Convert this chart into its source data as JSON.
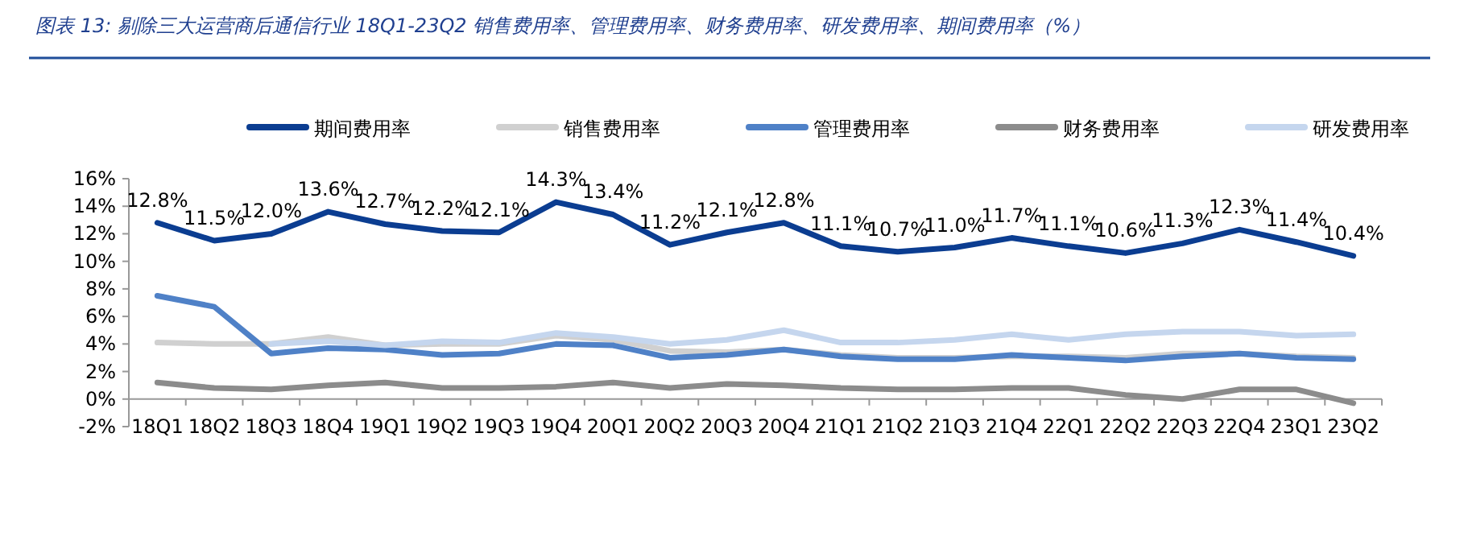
{
  "chart_data": {
    "type": "line",
    "title": "图表 13: 剔除三大运营商后通信行业 18Q1-23Q2 销售费用率、管理费用率、财务费用率、研发费用率、期间费用率（%）",
    "categories": [
      "18Q1",
      "18Q2",
      "18Q3",
      "18Q4",
      "19Q1",
      "19Q2",
      "19Q3",
      "19Q4",
      "20Q1",
      "20Q2",
      "20Q3",
      "20Q4",
      "21Q1",
      "21Q2",
      "21Q3",
      "21Q4",
      "22Q1",
      "22Q2",
      "22Q3",
      "22Q4",
      "23Q1",
      "23Q2"
    ],
    "series": [
      {
        "name": "期间费用率",
        "color": "#0b3d91",
        "values": [
          12.8,
          11.5,
          12.0,
          13.6,
          12.7,
          12.2,
          12.1,
          14.3,
          13.4,
          11.2,
          12.1,
          12.8,
          11.1,
          10.7,
          11.0,
          11.7,
          11.1,
          10.6,
          11.3,
          12.3,
          11.4,
          10.4
        ],
        "value_labels": [
          "12.8%",
          "11.5%",
          "12.0%",
          "13.6%",
          "12.7%",
          "12.2%",
          "12.1%",
          "14.3%",
          "13.4%",
          "11.2%",
          "12.1%",
          "12.8%",
          "11.1%",
          "10.7%",
          "11.0%",
          "11.7%",
          "11.1%",
          "10.6%",
          "11.3%",
          "12.3%",
          "11.4%",
          "10.4%"
        ]
      },
      {
        "name": "销售费用率",
        "color": "#d0d0d0",
        "values": [
          4.1,
          4.0,
          4.0,
          4.5,
          3.9,
          4.0,
          4.0,
          4.6,
          4.3,
          3.5,
          3.4,
          3.6,
          3.2,
          3.0,
          3.0,
          3.1,
          3.1,
          3.0,
          3.3,
          3.3,
          3.1,
          3.0
        ]
      },
      {
        "name": "管理费用率",
        "color": "#4f81c7",
        "values": [
          7.5,
          6.7,
          3.3,
          3.7,
          3.6,
          3.2,
          3.3,
          4.0,
          3.9,
          3.0,
          3.2,
          3.6,
          3.1,
          2.9,
          2.9,
          3.2,
          3.0,
          2.8,
          3.1,
          3.3,
          3.0,
          2.9
        ]
      },
      {
        "name": "财务费用率",
        "color": "#8c8c8c",
        "values": [
          1.2,
          0.8,
          0.7,
          1.0,
          1.2,
          0.8,
          0.8,
          0.9,
          1.2,
          0.8,
          1.1,
          1.0,
          0.8,
          0.7,
          0.7,
          0.8,
          0.8,
          0.3,
          0.0,
          0.7,
          0.7,
          -0.3
        ]
      },
      {
        "name": "研发费用率",
        "color": "#c5d6ee",
        "values": [
          null,
          null,
          4.0,
          4.2,
          3.9,
          4.2,
          4.1,
          4.8,
          4.5,
          4.0,
          4.3,
          5.0,
          4.1,
          4.1,
          4.3,
          4.7,
          4.3,
          4.7,
          4.9,
          4.9,
          4.6,
          4.7
        ]
      }
    ],
    "ylim": [
      -2,
      16
    ],
    "yticks": [
      {
        "value": -2,
        "label": "-2%"
      },
      {
        "value": 0,
        "label": "0%"
      },
      {
        "value": 2,
        "label": "2%"
      },
      {
        "value": 4,
        "label": "4%"
      },
      {
        "value": 6,
        "label": "6%"
      },
      {
        "value": 8,
        "label": "8%"
      },
      {
        "value": 10,
        "label": "10%"
      },
      {
        "value": 12,
        "label": "12%"
      },
      {
        "value": 14,
        "label": "14%"
      },
      {
        "value": 16,
        "label": "16%"
      }
    ],
    "legend": "top",
    "grid": false,
    "marker": "none",
    "line_style": "solid"
  }
}
